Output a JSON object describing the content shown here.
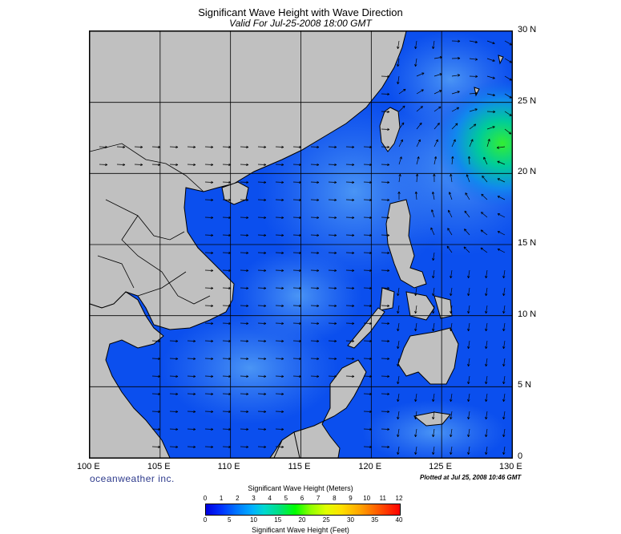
{
  "title": "Significant Wave Height with Wave Direction",
  "subtitle": "Valid For Jul-25-2008 18:00 GMT",
  "lat_labels": [
    "30 N",
    "25 N",
    "20 N",
    "15 N",
    "10 N",
    "5 N",
    "0"
  ],
  "lon_labels": [
    "100 E",
    "105 E",
    "110 E",
    "115 E",
    "120 E",
    "125 E",
    "130 E"
  ],
  "lon_ticks": [
    100,
    105,
    110,
    115,
    120,
    125,
    130
  ],
  "lat_ticks": [
    30,
    25,
    20,
    15,
    10,
    5,
    0
  ],
  "map_extent": {
    "lon_min": 100,
    "lon_max": 130,
    "lat_min": 0,
    "lat_max": 30
  },
  "logo": "oceanweather inc.",
  "plotted": "Plotted at Jul 25, 2008 10:46 GMT",
  "colorbar": {
    "title_meters": "Significant Wave Height (Meters)",
    "title_feet": "Significant Wave Height (Feet)",
    "meters": [
      "0",
      "1",
      "2",
      "3",
      "4",
      "5",
      "6",
      "7",
      "8",
      "9",
      "10",
      "11",
      "12"
    ],
    "feet": [
      "0",
      "5",
      "10",
      "15",
      "20",
      "25",
      "30",
      "35",
      "40"
    ]
  },
  "colors": {
    "land": "#c0c0c0",
    "ocean_deep": "#0040f0",
    "ocean_mid": "#2a6af5",
    "ocean_light": "#3b8bf5",
    "peak": "#22dd55"
  }
}
